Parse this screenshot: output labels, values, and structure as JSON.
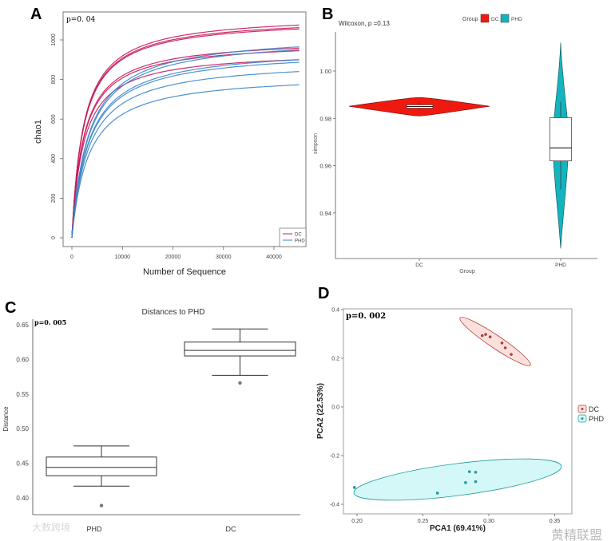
{
  "panels": {
    "a": "A",
    "b": "B",
    "c": "C",
    "d": "D"
  },
  "watermarks": {
    "left": "大数跨境",
    "right": "黄精联盟"
  },
  "chart_data": [
    {
      "type": "line",
      "panel": "A",
      "annotation": "p=0. 04",
      "xlabel": "Number of Sequence",
      "ylabel": "chao1",
      "xlim": [
        0,
        45000
      ],
      "ylim": [
        0,
        1100
      ],
      "xticks": [
        "0",
        "10000",
        "20000",
        "30000",
        "40000"
      ],
      "yticks": [
        "0",
        "200",
        "400",
        "600",
        "800",
        "1000"
      ],
      "legend": {
        "position": "bottom-right",
        "entries": [
          "DC",
          "PHD"
        ]
      },
      "colors": {
        "DC": "#c8175a",
        "PHD": "#3a85c8"
      },
      "series": [
        {
          "name": "DC",
          "final": 1075
        },
        {
          "name": "DC",
          "final": 1062
        },
        {
          "name": "DC",
          "final": 1055
        },
        {
          "name": "DC",
          "final": 958
        },
        {
          "name": "DC",
          "final": 945
        },
        {
          "name": "DC",
          "final": 900
        },
        {
          "name": "PHD",
          "final": 965
        },
        {
          "name": "PHD",
          "final": 950
        },
        {
          "name": "PHD",
          "final": 900
        },
        {
          "name": "PHD",
          "final": 887
        },
        {
          "name": "PHD",
          "final": 840
        },
        {
          "name": "PHD",
          "final": 773
        }
      ]
    },
    {
      "type": "violin",
      "panel": "B",
      "title": "Wilcoxon, p =0.13",
      "xlabel": "Group",
      "ylabel": "simpson",
      "categories": [
        "DC",
        "PHD"
      ],
      "yticks": [
        "1.00",
        "0.98",
        "0.96",
        "0.94"
      ],
      "legend": {
        "title": "Group",
        "position": "top",
        "entries": [
          "DC",
          "PHD"
        ]
      },
      "colors": {
        "DC": "#f0190f",
        "PHD": "#14b4bf"
      },
      "groups": [
        {
          "name": "DC",
          "min": 0.981,
          "max": 0.9888,
          "q1": 0.9843,
          "median": 0.985,
          "q3": 0.9857,
          "whisker_low": 0.9835,
          "whisker_high": 0.9865
        },
        {
          "name": "PHD",
          "min": 0.925,
          "max": 1.012,
          "q1": 0.962,
          "median": 0.9675,
          "q3": 0.9803,
          "whisker_low": 0.95,
          "whisker_high": 0.987
        }
      ]
    },
    {
      "type": "box",
      "panel": "C",
      "title": "Distances to PHD",
      "annotation": "p=0. 005",
      "ylabel": "Distance",
      "categories": [
        "PHD",
        "DC"
      ],
      "yticks": [
        "0.40",
        "0.45",
        "0.50",
        "0.55",
        "0.60",
        "0.65"
      ],
      "groups": [
        {
          "name": "PHD",
          "q1": 0.432,
          "median": 0.444,
          "q3": 0.459,
          "whisker_low": 0.417,
          "whisker_high": 0.475,
          "outliers": [
            0.389
          ]
        },
        {
          "name": "DC",
          "q1": 0.605,
          "median": 0.613,
          "q3": 0.625,
          "whisker_low": 0.577,
          "whisker_high": 0.644,
          "outliers": [
            0.566
          ]
        }
      ]
    },
    {
      "type": "scatter",
      "panel": "D",
      "annotation": "p=0. 002",
      "xlabel": "PCA1 (69.41%)",
      "ylabel": "PCA2 (22.53%)",
      "xlim": [
        0.19,
        0.36
      ],
      "ylim": [
        -0.42,
        0.41
      ],
      "xticks": [
        "0.20",
        "0.25",
        "0.30",
        "0.35"
      ],
      "yticks": [
        "0.4",
        "0.2",
        "0.0",
        "-0.2",
        "-0.4"
      ],
      "legend": {
        "position": "right",
        "entries": [
          "DC",
          "PHD"
        ]
      },
      "colors": {
        "DC": "#b5403a",
        "PHD": "#1f9a9a",
        "DC_fill": "#fbe0de",
        "PHD_fill": "#d4f7f8"
      },
      "series": [
        {
          "name": "DC",
          "points": [
            [
              0.295,
              0.293
            ],
            [
              0.2976,
              0.298
            ],
            [
              0.301,
              0.288
            ],
            [
              0.31,
              0.263
            ],
            [
              0.3125,
              0.243
            ],
            [
              0.317,
              0.216
            ]
          ]
        },
        {
          "name": "PHD",
          "points": [
            [
              0.198,
              -0.331
            ],
            [
              0.261,
              -0.354
            ],
            [
              0.2824,
              -0.311
            ],
            [
              0.2853,
              -0.266
            ],
            [
              0.29,
              -0.268
            ],
            [
              0.29,
              -0.307
            ]
          ]
        }
      ]
    }
  ]
}
